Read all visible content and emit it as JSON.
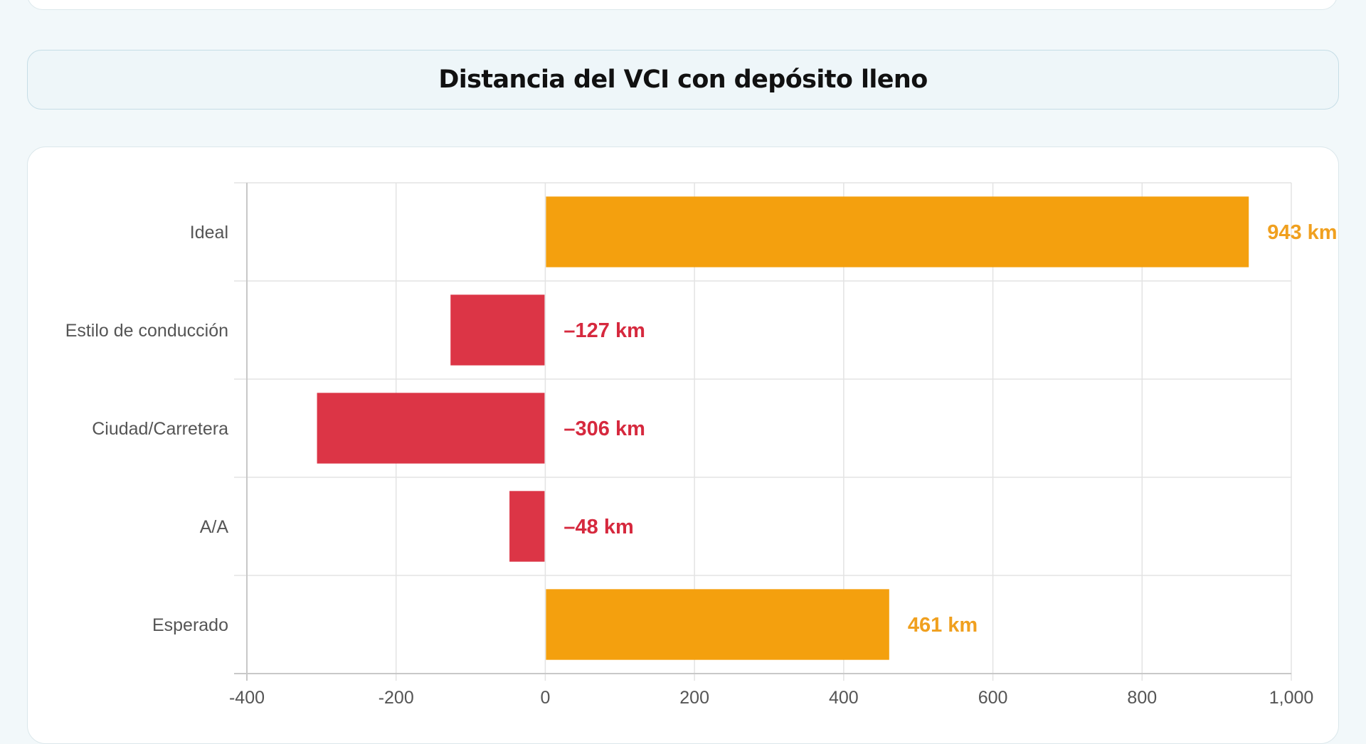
{
  "page": {
    "title": "Distancia del VCI con depósito lleno"
  },
  "colors": {
    "positive": "#f4a00e",
    "negative": "#dc3546",
    "positive_label": "#f0a01f",
    "negative_label": "#d6293e"
  },
  "chart_data": {
    "type": "bar",
    "orientation": "horizontal",
    "title": "Distancia del VCI con depósito lleno",
    "categories": [
      "Ideal",
      "Estilo de conducción",
      "Ciudad/Carretera",
      "A/A",
      "Esperado"
    ],
    "values": [
      943,
      -127,
      -306,
      -48,
      461
    ],
    "data_labels": [
      "943 km",
      "–127 km",
      "–306 km",
      "–48 km",
      "461 km"
    ],
    "xlim": [
      -400,
      1000
    ],
    "x_ticks": [
      -400,
      -200,
      0,
      200,
      400,
      600,
      800,
      1000
    ],
    "x_tick_labels": [
      "-400",
      "-200",
      "0",
      "200",
      "400",
      "600",
      "800",
      "1,000"
    ],
    "unit": "km",
    "grid": true,
    "legend": "none"
  }
}
